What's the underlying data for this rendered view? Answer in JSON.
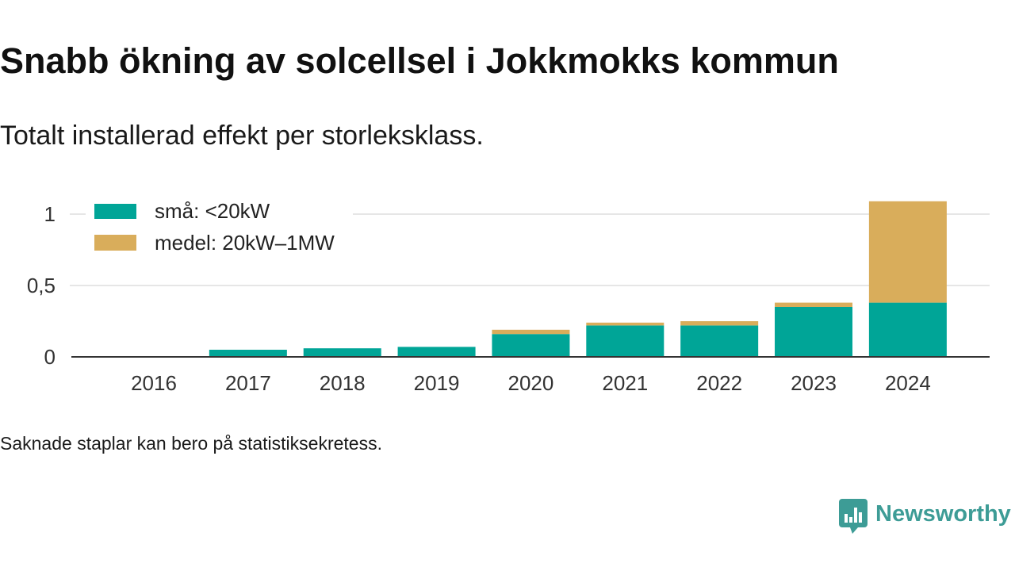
{
  "title": "Snabb ökning av solcellsel i Jokkmokks kommun",
  "subtitle": "Totalt installerad effekt per storleksklass.",
  "footnote": "Saknade staplar kan bero på statistiksekretess.",
  "brand": {
    "name": "Newsworthy",
    "icon": "newsworthy-logo-icon",
    "color": "#3d9c96"
  },
  "chart_data": {
    "type": "bar",
    "stacked": true,
    "categories": [
      "2016",
      "2017",
      "2018",
      "2019",
      "2020",
      "2021",
      "2022",
      "2023",
      "2024"
    ],
    "series": [
      {
        "name": "små: <20kW",
        "color": "#00a597",
        "values": [
          null,
          0.05,
          0.06,
          0.07,
          0.16,
          0.22,
          0.22,
          0.35,
          0.38
        ]
      },
      {
        "name": "medel: 20kW–1MW",
        "color": "#d9ad5b",
        "values": [
          null,
          null,
          null,
          null,
          0.03,
          0.02,
          0.03,
          0.03,
          0.71
        ]
      }
    ],
    "y_ticks": [
      {
        "value": 0,
        "label": "0"
      },
      {
        "value": 0.5,
        "label": "0,5"
      },
      {
        "value": 1,
        "label": "1"
      }
    ],
    "ylim": [
      0,
      1.1
    ],
    "grid": true,
    "legend_position": "top-left"
  }
}
